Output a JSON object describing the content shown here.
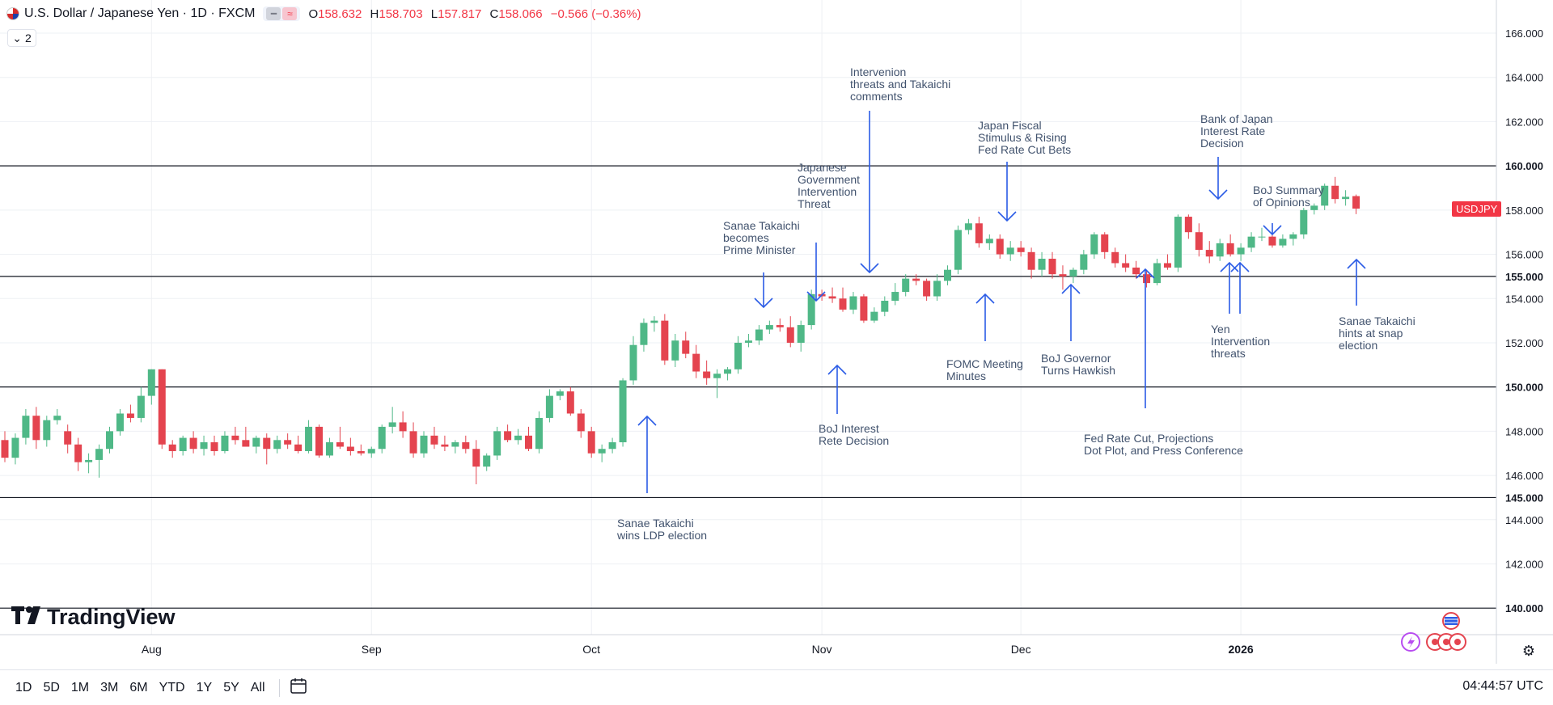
{
  "header": {
    "symbol": "U.S. Dollar / Japanese Yen · 1D · FXCM",
    "pill_left": "━",
    "pill_right": "≈",
    "open_label": "O",
    "open": "158.632",
    "high_label": "H",
    "high": "158.703",
    "low_label": "L",
    "low": "157.817",
    "close_label": "C",
    "close": "158.066",
    "change": "−0.566 (−0.36%)",
    "change_color": "#f23645",
    "collapse_count": "2"
  },
  "timeframes": [
    "1D",
    "5D",
    "1M",
    "3M",
    "6M",
    "YTD",
    "1Y",
    "5Y",
    "All"
  ],
  "clock": "04:44:57 UTC",
  "logo": "TradingView",
  "price_tag": "USDJPY",
  "colors": {
    "up": "#4fb887",
    "down": "#e4444f",
    "arrow": "#2b5ce6",
    "grid": "#eef0f4",
    "level": "#131722"
  },
  "chart_data": {
    "type": "candlestick",
    "title": "U.S. Dollar / Japanese Yen · 1D · FXCM",
    "ylim": [
      138.8,
      167.5
    ],
    "y_ticks": [
      "166.000",
      "164.000",
      "162.000",
      "160.000",
      "158.000",
      "156.000",
      "155.000",
      "154.000",
      "152.000",
      "150.000",
      "148.000",
      "146.000",
      "145.000",
      "144.000",
      "142.000",
      "140.000"
    ],
    "highlighted_levels": [
      "160.000",
      "155.000",
      "150.000",
      "145.000",
      "140.000"
    ],
    "x_ticks": [
      {
        "label": "Aug",
        "index": 14
      },
      {
        "label": "Sep",
        "index": 35
      },
      {
        "label": "Oct",
        "index": 56
      },
      {
        "label": "Nov",
        "index": 78
      },
      {
        "label": "Dec",
        "index": 97
      },
      {
        "label": "2026",
        "index": 118
      }
    ],
    "candles": [
      [
        147.6,
        148.0,
        146.6,
        146.8
      ],
      [
        146.8,
        147.9,
        146.5,
        147.7
      ],
      [
        147.7,
        149.0,
        147.4,
        148.7
      ],
      [
        148.7,
        149.1,
        147.2,
        147.6
      ],
      [
        147.6,
        148.7,
        147.3,
        148.5
      ],
      [
        148.5,
        149.0,
        148.3,
        148.7
      ],
      [
        148.0,
        148.3,
        147.0,
        147.4
      ],
      [
        147.4,
        147.7,
        146.2,
        146.6
      ],
      [
        146.6,
        147.0,
        146.1,
        146.7
      ],
      [
        146.7,
        147.4,
        145.9,
        147.2
      ],
      [
        147.2,
        148.2,
        147.0,
        148.0
      ],
      [
        148.0,
        149.0,
        147.8,
        148.8
      ],
      [
        148.8,
        149.2,
        148.4,
        148.6
      ],
      [
        148.6,
        150.0,
        148.4,
        149.6
      ],
      [
        149.6,
        150.8,
        149.2,
        150.8
      ],
      [
        150.8,
        150.8,
        147.2,
        147.4
      ],
      [
        147.4,
        147.6,
        146.8,
        147.1
      ],
      [
        147.1,
        147.8,
        146.9,
        147.7
      ],
      [
        147.7,
        148.0,
        147.0,
        147.2
      ],
      [
        147.2,
        147.8,
        146.9,
        147.5
      ],
      [
        147.5,
        147.8,
        146.9,
        147.1
      ],
      [
        147.1,
        148.0,
        147.0,
        147.8
      ],
      [
        147.8,
        148.2,
        147.4,
        147.6
      ],
      [
        147.6,
        148.2,
        147.3,
        147.3
      ],
      [
        147.3,
        147.8,
        147.0,
        147.7
      ],
      [
        147.7,
        147.9,
        146.5,
        147.2
      ],
      [
        147.2,
        147.8,
        147.0,
        147.6
      ],
      [
        147.6,
        147.9,
        147.2,
        147.4
      ],
      [
        147.4,
        147.8,
        147.0,
        147.1
      ],
      [
        147.1,
        148.5,
        147.0,
        148.2
      ],
      [
        148.2,
        148.3,
        146.8,
        146.9
      ],
      [
        146.9,
        147.7,
        146.8,
        147.5
      ],
      [
        147.5,
        148.2,
        147.2,
        147.3
      ],
      [
        147.3,
        147.7,
        146.9,
        147.1
      ],
      [
        147.1,
        147.4,
        146.9,
        147.0
      ],
      [
        147.0,
        147.3,
        146.8,
        147.2
      ],
      [
        147.2,
        148.3,
        147.0,
        148.2
      ],
      [
        148.2,
        149.1,
        147.9,
        148.4
      ],
      [
        148.4,
        148.9,
        147.7,
        148.0
      ],
      [
        148.0,
        148.4,
        146.8,
        147.0
      ],
      [
        147.0,
        148.0,
        146.8,
        147.8
      ],
      [
        147.8,
        148.2,
        147.2,
        147.4
      ],
      [
        147.4,
        147.8,
        147.1,
        147.3
      ],
      [
        147.3,
        147.6,
        147.0,
        147.5
      ],
      [
        147.5,
        147.8,
        147.0,
        147.2
      ],
      [
        147.2,
        147.6,
        145.6,
        146.4
      ],
      [
        146.4,
        147.0,
        146.2,
        146.9
      ],
      [
        146.9,
        148.2,
        146.7,
        148.0
      ],
      [
        148.0,
        148.3,
        147.5,
        147.6
      ],
      [
        147.6,
        148.1,
        147.4,
        147.8
      ],
      [
        147.8,
        148.2,
        147.1,
        147.2
      ],
      [
        147.2,
        148.9,
        147.0,
        148.6
      ],
      [
        148.6,
        149.9,
        148.4,
        149.6
      ],
      [
        149.6,
        149.9,
        149.4,
        149.8
      ],
      [
        149.8,
        150.0,
        148.7,
        148.8
      ],
      [
        148.8,
        149.0,
        147.7,
        148.0
      ],
      [
        148.0,
        148.2,
        146.8,
        147.0
      ],
      [
        147.0,
        147.4,
        146.6,
        147.2
      ],
      [
        147.2,
        147.7,
        147.0,
        147.5
      ],
      [
        147.5,
        150.4,
        147.3,
        150.3
      ],
      [
        150.3,
        152.3,
        150.1,
        151.9
      ],
      [
        151.9,
        153.1,
        151.6,
        152.9
      ],
      [
        152.9,
        153.2,
        152.5,
        153.0
      ],
      [
        153.0,
        153.3,
        151.0,
        151.2
      ],
      [
        151.2,
        152.4,
        150.9,
        152.1
      ],
      [
        152.1,
        152.5,
        151.3,
        151.5
      ],
      [
        151.5,
        151.9,
        150.4,
        150.7
      ],
      [
        150.7,
        151.2,
        150.1,
        150.4
      ],
      [
        150.4,
        150.8,
        149.5,
        150.6
      ],
      [
        150.6,
        150.9,
        150.3,
        150.8
      ],
      [
        150.8,
        152.3,
        150.6,
        152.0
      ],
      [
        152.0,
        152.4,
        151.8,
        152.1
      ],
      [
        152.1,
        152.8,
        151.9,
        152.6
      ],
      [
        152.6,
        153.0,
        152.4,
        152.8
      ],
      [
        152.8,
        153.1,
        152.5,
        152.7
      ],
      [
        152.7,
        153.2,
        151.8,
        152.0
      ],
      [
        152.0,
        153.0,
        151.6,
        152.8
      ],
      [
        152.8,
        154.4,
        152.6,
        154.2
      ],
      [
        154.2,
        154.4,
        153.9,
        154.1
      ],
      [
        154.1,
        154.5,
        153.8,
        154.0
      ],
      [
        154.0,
        154.5,
        153.4,
        153.5
      ],
      [
        153.5,
        154.3,
        153.3,
        154.1
      ],
      [
        154.1,
        154.2,
        152.9,
        153.0
      ],
      [
        153.0,
        153.6,
        152.9,
        153.4
      ],
      [
        153.4,
        154.1,
        153.2,
        153.9
      ],
      [
        153.9,
        154.7,
        153.7,
        154.3
      ],
      [
        154.3,
        155.1,
        154.1,
        154.9
      ],
      [
        154.9,
        155.1,
        154.6,
        154.8
      ],
      [
        154.8,
        154.9,
        153.9,
        154.1
      ],
      [
        154.1,
        155.1,
        153.9,
        154.8
      ],
      [
        154.8,
        155.5,
        154.6,
        155.3
      ],
      [
        155.3,
        157.3,
        155.1,
        157.1
      ],
      [
        157.1,
        157.6,
        156.9,
        157.4
      ],
      [
        157.4,
        157.7,
        156.3,
        156.5
      ],
      [
        156.5,
        156.9,
        156.2,
        156.7
      ],
      [
        156.7,
        156.9,
        155.8,
        156.0
      ],
      [
        156.0,
        156.6,
        155.7,
        156.3
      ],
      [
        156.3,
        156.6,
        155.9,
        156.1
      ],
      [
        156.1,
        156.3,
        154.9,
        155.3
      ],
      [
        155.3,
        156.1,
        155.0,
        155.8
      ],
      [
        155.8,
        156.1,
        154.9,
        155.1
      ],
      [
        155.1,
        155.5,
        154.4,
        155.0
      ],
      [
        155.0,
        155.4,
        154.7,
        155.3
      ],
      [
        155.3,
        156.2,
        155.1,
        156.0
      ],
      [
        156.0,
        157.0,
        155.8,
        156.9
      ],
      [
        156.9,
        157.0,
        155.8,
        156.1
      ],
      [
        156.1,
        156.3,
        155.4,
        155.6
      ],
      [
        155.6,
        156.0,
        155.2,
        155.4
      ],
      [
        155.4,
        155.7,
        154.9,
        155.1
      ],
      [
        155.1,
        155.3,
        154.5,
        154.7
      ],
      [
        154.7,
        155.8,
        154.6,
        155.6
      ],
      [
        155.6,
        156.0,
        155.3,
        155.4
      ],
      [
        155.4,
        157.8,
        155.2,
        157.7
      ],
      [
        157.7,
        157.8,
        156.7,
        157.0
      ],
      [
        157.0,
        157.4,
        155.9,
        156.2
      ],
      [
        156.2,
        156.6,
        155.6,
        155.9
      ],
      [
        155.9,
        156.7,
        155.7,
        156.5
      ],
      [
        156.5,
        156.9,
        155.9,
        156.0
      ],
      [
        156.0,
        156.5,
        155.7,
        156.3
      ],
      [
        156.3,
        157.0,
        156.1,
        156.8
      ],
      [
        156.8,
        157.2,
        156.6,
        156.8
      ],
      [
        156.8,
        157.0,
        156.3,
        156.4
      ],
      [
        156.4,
        156.9,
        156.3,
        156.7
      ],
      [
        156.7,
        157.0,
        156.4,
        156.9
      ],
      [
        156.9,
        158.1,
        156.7,
        158.0
      ],
      [
        158.0,
        158.3,
        157.8,
        158.2
      ],
      [
        158.2,
        159.2,
        158.0,
        159.1
      ],
      [
        159.1,
        159.5,
        158.3,
        158.5
      ],
      [
        158.5,
        158.9,
        158.2,
        158.6
      ],
      [
        158.632,
        158.703,
        157.817,
        158.066
      ]
    ],
    "annotations": [
      {
        "text": [
          "Sanae Takaichi",
          "wins LDP election"
        ],
        "index": 60
      },
      {
        "text": [
          "Sanae Takaichi",
          "becomes",
          "Prime Minister"
        ],
        "index": 71
      },
      {
        "text": [
          "Japanese",
          "Government",
          "Intervention",
          "Threat"
        ],
        "index": 76
      },
      {
        "text": [
          "BoJ Interest",
          "Rete Decision"
        ],
        "index": 78
      },
      {
        "text": [
          "Intervenion",
          "threats and Takaichi",
          "comments"
        ],
        "index": 81
      },
      {
        "text": [
          "FOMC Meeting",
          "Minutes"
        ],
        "index": 92
      },
      {
        "text": [
          "Japan Fiscal",
          "Stimulus & Rising",
          "Fed Rate Cut Bets"
        ],
        "index": 94
      },
      {
        "text": [
          "BoJ Governor",
          "Turns Hawkish"
        ],
        "index": 100
      },
      {
        "text": [
          "Fed Rate Cut, Projections",
          "Dot Plot, and Press Conference"
        ],
        "index": 107
      },
      {
        "text": [
          "Bank of Japan",
          "Interest Rate",
          "Decision"
        ],
        "index": 114
      },
      {
        "text": [
          "Yen",
          "Intervention",
          "threats"
        ],
        "index": 115
      },
      {
        "text": [
          "BoJ Summary",
          "of Opinions"
        ],
        "index": 119
      },
      {
        "text": [
          "Sanae Takaichi",
          "hints at snap",
          "election"
        ],
        "index": 127
      }
    ],
    "last_price_label": "USDJPY"
  }
}
